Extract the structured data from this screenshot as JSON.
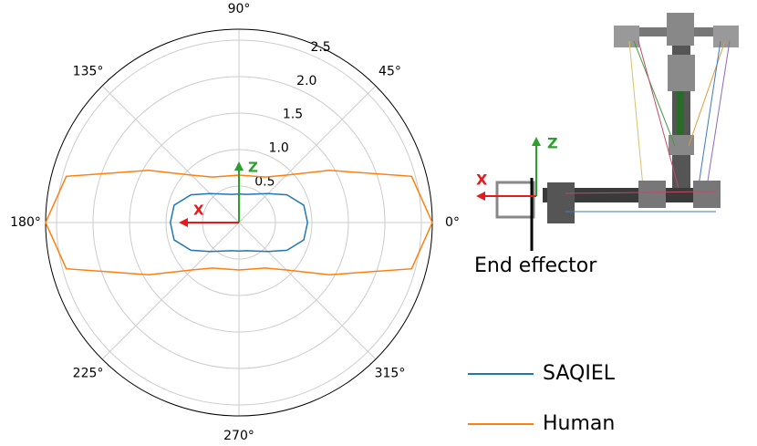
{
  "chart_data": {
    "type": "polar",
    "theta": [
      0,
      15,
      30,
      45,
      60,
      75,
      90,
      105,
      120,
      135,
      150,
      165,
      180,
      195,
      210,
      225,
      240,
      255,
      270,
      285,
      300,
      315,
      330,
      345,
      360
    ],
    "series": [
      {
        "name": "SAQIEL",
        "color": "#1f77b4",
        "values": [
          0.94,
          0.92,
          0.76,
          0.56,
          0.45,
          0.4,
          0.39,
          0.4,
          0.45,
          0.56,
          0.76,
          0.92,
          0.94,
          0.92,
          0.76,
          0.56,
          0.45,
          0.4,
          0.39,
          0.4,
          0.45,
          0.56,
          0.76,
          0.92,
          0.94
        ]
      },
      {
        "name": "Human",
        "color": "#ff7f0e",
        "values": [
          2.65,
          2.45,
          1.43,
          0.92,
          0.72,
          0.66,
          0.65,
          0.66,
          0.72,
          0.92,
          1.43,
          2.45,
          2.65,
          2.45,
          1.43,
          0.92,
          0.72,
          0.66,
          0.65,
          0.66,
          0.72,
          0.92,
          1.43,
          2.45,
          2.65
        ]
      }
    ],
    "rlim": [
      0,
      2.65
    ],
    "rticks": [
      0.5,
      {
        "value": 1,
        "label": "1.0"
      },
      1.5,
      {
        "value": 2,
        "label": "2.0"
      },
      2.5
    ],
    "thetaticks": [
      {
        "value": 0,
        "label": "0°"
      },
      {
        "value": 45,
        "label": "45°"
      },
      {
        "value": 90,
        "label": "90°"
      },
      {
        "value": 135,
        "label": "135°"
      },
      {
        "value": 180,
        "label": "180°"
      },
      {
        "value": 225,
        "label": "225°"
      },
      {
        "value": 270,
        "label": "270°"
      },
      {
        "value": 315,
        "label": "315°"
      }
    ],
    "grid": true,
    "annotations": [
      "Z",
      "X"
    ]
  },
  "diagram": {
    "z_axis": "Z",
    "x_axis": "X",
    "end_effector": "End effector"
  }
}
